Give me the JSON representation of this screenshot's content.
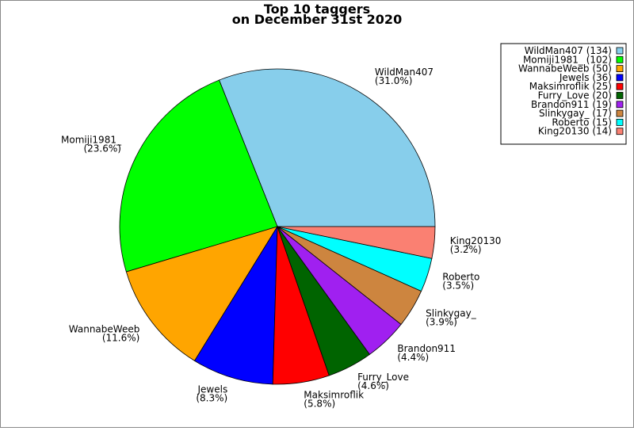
{
  "chart_data": {
    "type": "pie",
    "title": "Top 10 taggers",
    "subtitle": "on December 31st 2020",
    "categories": [
      "WildMan407",
      "Momiji1981_",
      "WannabeWeeb",
      "Jewels",
      "Maksimroflik",
      "Furry_Love",
      "Brandon911",
      "Slinkygay_",
      "Roberto",
      "King20130"
    ],
    "values": [
      134,
      102,
      50,
      36,
      25,
      20,
      19,
      17,
      15,
      14
    ],
    "value_labels": [
      "(134)",
      "(102)",
      "(50)",
      "(36)",
      "(25)",
      "(20)",
      "(19)",
      "(17)",
      "(15)",
      "(14)"
    ],
    "percent_labels": [
      "(31.0%)",
      "(23.6%)",
      "(11.6%)",
      "(8.3%)",
      "(5.8%)",
      "(4.6%)",
      "(4.4%)",
      "(3.9%)",
      "(3.5%)",
      "(3.2%)"
    ],
    "colors": [
      "#87ceeb",
      "#00ff00",
      "#ffa500",
      "#0000ff",
      "#ff0000",
      "#006400",
      "#a020f0",
      "#cd853f",
      "#00ffff",
      "#fa8072"
    ],
    "legend": "upper right"
  }
}
